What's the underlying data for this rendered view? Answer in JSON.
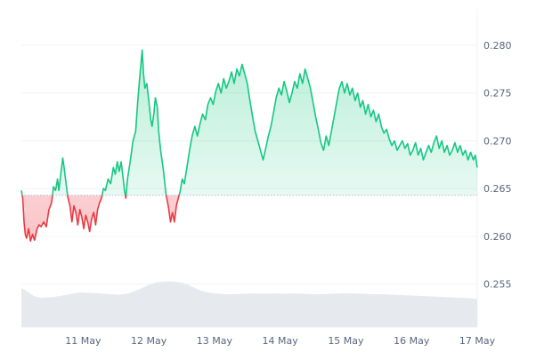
{
  "chart_data": {
    "type": "area",
    "baseline": 0.2643,
    "y_ticks": [
      "0.280",
      "0.275",
      "0.270",
      "0.265",
      "0.260",
      "0.255"
    ],
    "y_tick_values": [
      0.28,
      0.275,
      0.27,
      0.265,
      0.26,
      0.255
    ],
    "ylim": [
      0.2505,
      0.2838
    ],
    "x_ticks": [
      "11 May",
      "12 May",
      "13 May",
      "14 May",
      "15 May",
      "16 May",
      "17 May"
    ],
    "x_tick_values": [
      11,
      12,
      13,
      14,
      15,
      16,
      17
    ],
    "xlim": [
      10.06,
      17.0
    ],
    "grid": true,
    "colors": {
      "up_line": "#16c784",
      "down_line": "#ea3943",
      "up_fill": "#16c784",
      "down_fill": "#ea3943",
      "volume_fill": "#e6e9ee",
      "grid": "#eff2f5",
      "baseline": "#b5bcc6"
    },
    "series": [
      {
        "values": [
          [
            10.06,
            0.2648
          ],
          [
            10.08,
            0.264
          ],
          [
            10.1,
            0.2615
          ],
          [
            10.12,
            0.2602
          ],
          [
            10.14,
            0.2598
          ],
          [
            10.17,
            0.2608
          ],
          [
            10.2,
            0.2595
          ],
          [
            10.23,
            0.2602
          ],
          [
            10.26,
            0.2596
          ],
          [
            10.3,
            0.2608
          ],
          [
            10.33,
            0.2612
          ],
          [
            10.36,
            0.261
          ],
          [
            10.4,
            0.2615
          ],
          [
            10.44,
            0.261
          ],
          [
            10.48,
            0.2628
          ],
          [
            10.52,
            0.2635
          ],
          [
            10.55,
            0.2652
          ],
          [
            10.58,
            0.2648
          ],
          [
            10.61,
            0.266
          ],
          [
            10.63,
            0.2648
          ],
          [
            10.66,
            0.2665
          ],
          [
            10.69,
            0.2682
          ],
          [
            10.71,
            0.2672
          ],
          [
            10.74,
            0.2655
          ],
          [
            10.77,
            0.264
          ],
          [
            10.8,
            0.2632
          ],
          [
            10.83,
            0.2615
          ],
          [
            10.86,
            0.2632
          ],
          [
            10.89,
            0.2625
          ],
          [
            10.92,
            0.2612
          ],
          [
            10.95,
            0.2628
          ],
          [
            10.98,
            0.262
          ],
          [
            11.01,
            0.2608
          ],
          [
            11.04,
            0.2622
          ],
          [
            11.07,
            0.2615
          ],
          [
            11.1,
            0.2605
          ],
          [
            11.13,
            0.2618
          ],
          [
            11.16,
            0.2625
          ],
          [
            11.19,
            0.2612
          ],
          [
            11.22,
            0.2628
          ],
          [
            11.25,
            0.2635
          ],
          [
            11.28,
            0.264
          ],
          [
            11.31,
            0.265
          ],
          [
            11.34,
            0.2648
          ],
          [
            11.38,
            0.266
          ],
          [
            11.42,
            0.2655
          ],
          [
            11.46,
            0.2672
          ],
          [
            11.49,
            0.2665
          ],
          [
            11.52,
            0.2678
          ],
          [
            11.55,
            0.2668
          ],
          [
            11.58,
            0.2678
          ],
          [
            11.61,
            0.266
          ],
          [
            11.63,
            0.2648
          ],
          [
            11.65,
            0.264
          ],
          [
            11.68,
            0.2662
          ],
          [
            11.72,
            0.268
          ],
          [
            11.76,
            0.27
          ],
          [
            11.8,
            0.271
          ],
          [
            11.83,
            0.274
          ],
          [
            11.86,
            0.2765
          ],
          [
            11.88,
            0.278
          ],
          [
            11.9,
            0.2795
          ],
          [
            11.92,
            0.277
          ],
          [
            11.94,
            0.2755
          ],
          [
            11.97,
            0.276
          ],
          [
            12.0,
            0.2742
          ],
          [
            12.03,
            0.2722
          ],
          [
            12.05,
            0.2715
          ],
          [
            12.08,
            0.273
          ],
          [
            12.1,
            0.2745
          ],
          [
            12.13,
            0.2735
          ],
          [
            12.15,
            0.271
          ],
          [
            12.18,
            0.269
          ],
          [
            12.22,
            0.267
          ],
          [
            12.26,
            0.2645
          ],
          [
            12.3,
            0.263
          ],
          [
            12.33,
            0.2615
          ],
          [
            12.36,
            0.2625
          ],
          [
            12.39,
            0.2615
          ],
          [
            12.42,
            0.2632
          ],
          [
            12.45,
            0.264
          ],
          [
            12.48,
            0.2648
          ],
          [
            12.51,
            0.266
          ],
          [
            12.54,
            0.2655
          ],
          [
            12.58,
            0.2672
          ],
          [
            12.62,
            0.269
          ],
          [
            12.66,
            0.2705
          ],
          [
            12.7,
            0.2715
          ],
          [
            12.74,
            0.2705
          ],
          [
            12.78,
            0.2718
          ],
          [
            12.82,
            0.2728
          ],
          [
            12.86,
            0.2722
          ],
          [
            12.9,
            0.2738
          ],
          [
            12.94,
            0.2745
          ],
          [
            12.98,
            0.2738
          ],
          [
            13.02,
            0.2752
          ],
          [
            13.06,
            0.276
          ],
          [
            13.1,
            0.275
          ],
          [
            13.14,
            0.2765
          ],
          [
            13.18,
            0.2755
          ],
          [
            13.22,
            0.2762
          ],
          [
            13.26,
            0.2772
          ],
          [
            13.3,
            0.276
          ],
          [
            13.34,
            0.2775
          ],
          [
            13.38,
            0.2768
          ],
          [
            13.42,
            0.278
          ],
          [
            13.46,
            0.277
          ],
          [
            13.5,
            0.276
          ],
          [
            13.54,
            0.2742
          ],
          [
            13.58,
            0.2725
          ],
          [
            13.62,
            0.271
          ],
          [
            13.66,
            0.27
          ],
          [
            13.7,
            0.269
          ],
          [
            13.74,
            0.268
          ],
          [
            13.78,
            0.2692
          ],
          [
            13.82,
            0.2705
          ],
          [
            13.86,
            0.2715
          ],
          [
            13.9,
            0.273
          ],
          [
            13.94,
            0.2745
          ],
          [
            13.98,
            0.2755
          ],
          [
            14.02,
            0.2748
          ],
          [
            14.06,
            0.2762
          ],
          [
            14.1,
            0.2752
          ],
          [
            14.14,
            0.274
          ],
          [
            14.18,
            0.275
          ],
          [
            14.22,
            0.2762
          ],
          [
            14.26,
            0.2755
          ],
          [
            14.3,
            0.277
          ],
          [
            14.34,
            0.276
          ],
          [
            14.38,
            0.2775
          ],
          [
            14.42,
            0.2765
          ],
          [
            14.46,
            0.2755
          ],
          [
            14.5,
            0.274
          ],
          [
            14.54,
            0.2725
          ],
          [
            14.58,
            0.2712
          ],
          [
            14.62,
            0.2698
          ],
          [
            14.66,
            0.269
          ],
          [
            14.7,
            0.2705
          ],
          [
            14.74,
            0.2695
          ],
          [
            14.78,
            0.271
          ],
          [
            14.82,
            0.2725
          ],
          [
            14.86,
            0.274
          ],
          [
            14.9,
            0.2755
          ],
          [
            14.94,
            0.2762
          ],
          [
            14.98,
            0.275
          ],
          [
            15.02,
            0.276
          ],
          [
            15.06,
            0.2748
          ],
          [
            15.1,
            0.2755
          ],
          [
            15.14,
            0.2742
          ],
          [
            15.18,
            0.275
          ],
          [
            15.22,
            0.2735
          ],
          [
            15.26,
            0.2742
          ],
          [
            15.3,
            0.2728
          ],
          [
            15.34,
            0.2738
          ],
          [
            15.38,
            0.2725
          ],
          [
            15.42,
            0.2732
          ],
          [
            15.46,
            0.272
          ],
          [
            15.5,
            0.2728
          ],
          [
            15.54,
            0.2715
          ],
          [
            15.58,
            0.2708
          ],
          [
            15.62,
            0.2712
          ],
          [
            15.66,
            0.2702
          ],
          [
            15.7,
            0.2695
          ],
          [
            15.74,
            0.27
          ],
          [
            15.78,
            0.269
          ],
          [
            15.82,
            0.2695
          ],
          [
            15.86,
            0.27
          ],
          [
            15.9,
            0.2692
          ],
          [
            15.94,
            0.2697
          ],
          [
            15.98,
            0.2685
          ],
          [
            16.02,
            0.269
          ],
          [
            16.06,
            0.2698
          ],
          [
            16.1,
            0.2685
          ],
          [
            16.14,
            0.2692
          ],
          [
            16.18,
            0.268
          ],
          [
            16.22,
            0.2688
          ],
          [
            16.26,
            0.2695
          ],
          [
            16.3,
            0.2688
          ],
          [
            16.34,
            0.2698
          ],
          [
            16.38,
            0.2705
          ],
          [
            16.42,
            0.2692
          ],
          [
            16.46,
            0.27
          ],
          [
            16.5,
            0.2688
          ],
          [
            16.54,
            0.2695
          ],
          [
            16.58,
            0.2685
          ],
          [
            16.62,
            0.269
          ],
          [
            16.66,
            0.2698
          ],
          [
            16.7,
            0.2688
          ],
          [
            16.74,
            0.2695
          ],
          [
            16.78,
            0.2685
          ],
          [
            16.82,
            0.269
          ],
          [
            16.86,
            0.268
          ],
          [
            16.9,
            0.2688
          ],
          [
            16.94,
            0.268
          ],
          [
            16.97,
            0.2685
          ],
          [
            17.0,
            0.2672
          ]
        ]
      }
    ],
    "volume": [
      [
        10.06,
        0.88
      ],
      [
        10.15,
        0.8
      ],
      [
        10.25,
        0.7
      ],
      [
        10.35,
        0.66
      ],
      [
        10.5,
        0.67
      ],
      [
        10.65,
        0.7
      ],
      [
        10.8,
        0.74
      ],
      [
        10.95,
        0.78
      ],
      [
        11.1,
        0.77
      ],
      [
        11.25,
        0.76
      ],
      [
        11.4,
        0.74
      ],
      [
        11.55,
        0.73
      ],
      [
        11.7,
        0.76
      ],
      [
        11.8,
        0.82
      ],
      [
        11.9,
        0.88
      ],
      [
        12.0,
        0.95
      ],
      [
        12.1,
        1.0
      ],
      [
        12.2,
        1.02
      ],
      [
        12.3,
        1.03
      ],
      [
        12.4,
        1.02
      ],
      [
        12.5,
        1.0
      ],
      [
        12.6,
        0.95
      ],
      [
        12.7,
        0.88
      ],
      [
        12.8,
        0.82
      ],
      [
        12.9,
        0.78
      ],
      [
        13.0,
        0.76
      ],
      [
        13.15,
        0.74
      ],
      [
        13.3,
        0.74
      ],
      [
        13.45,
        0.75
      ],
      [
        13.6,
        0.76
      ],
      [
        13.75,
        0.75
      ],
      [
        13.9,
        0.76
      ],
      [
        14.05,
        0.75
      ],
      [
        14.2,
        0.76
      ],
      [
        14.35,
        0.75
      ],
      [
        14.5,
        0.74
      ],
      [
        14.65,
        0.74
      ],
      [
        14.8,
        0.75
      ],
      [
        14.95,
        0.76
      ],
      [
        15.1,
        0.76
      ],
      [
        15.25,
        0.75
      ],
      [
        15.4,
        0.74
      ],
      [
        15.55,
        0.74
      ],
      [
        15.7,
        0.73
      ],
      [
        15.85,
        0.72
      ],
      [
        16.0,
        0.71
      ],
      [
        16.15,
        0.7
      ],
      [
        16.3,
        0.69
      ],
      [
        16.45,
        0.68
      ],
      [
        16.6,
        0.67
      ],
      [
        16.75,
        0.66
      ],
      [
        16.9,
        0.65
      ],
      [
        17.0,
        0.63
      ]
    ]
  }
}
